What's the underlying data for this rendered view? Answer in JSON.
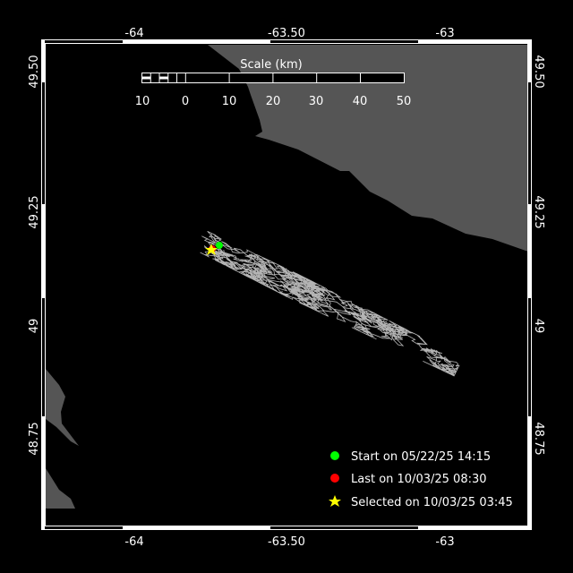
{
  "map": {
    "axes": {
      "longitude_ticks": [
        "-64",
        "-63.50",
        "-63"
      ],
      "latitude_ticks": [
        "49.50",
        "49.25",
        "49",
        "48.75"
      ]
    },
    "scale_bar": {
      "title": "Scale (km)",
      "labels": [
        "10",
        "0",
        "10",
        "20",
        "30",
        "40",
        "50"
      ]
    },
    "legend": [
      {
        "label": "Start on 05/22/25 14:15",
        "marker": "circle",
        "color": "#00ff00"
      },
      {
        "label": "Last on 10/03/25 08:30",
        "marker": "circle",
        "color": "#ff0000"
      },
      {
        "label": "Selected on 10/03/25 03:45",
        "marker": "star",
        "color": "#ffff00"
      }
    ],
    "colors": {
      "water": "#000000",
      "land": "#555555",
      "track": "#b4b4b4",
      "frame": "#ffffff"
    }
  }
}
